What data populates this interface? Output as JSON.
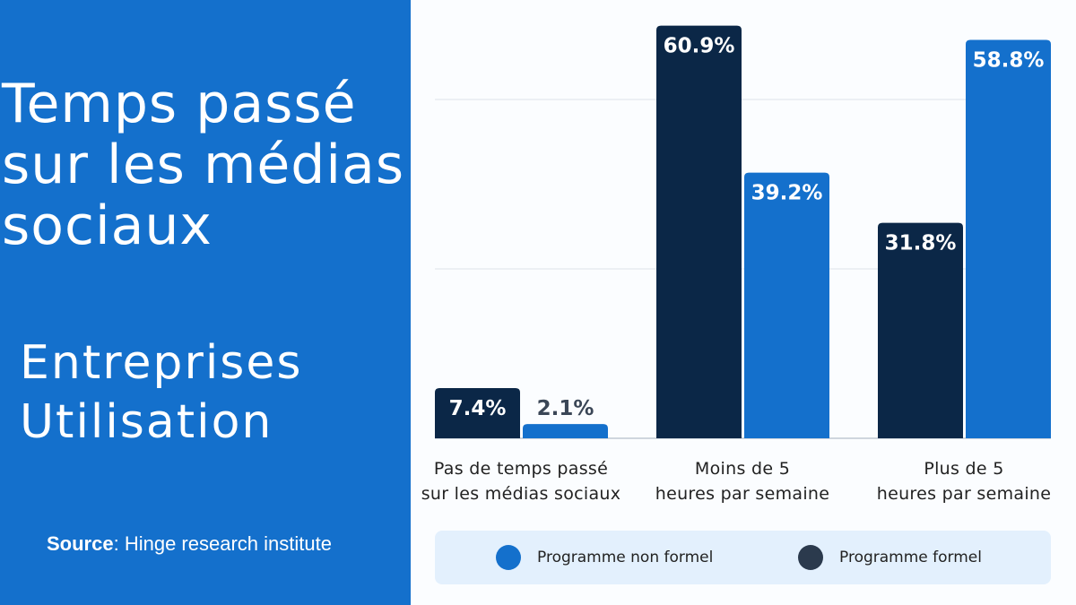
{
  "panel": {
    "title": "Temps passé sur les médias sociaux",
    "subtitle_line1": "Entreprises",
    "subtitle_line2": "Utilisation",
    "source_label": "Source",
    "source_text": ": Hinge research institute"
  },
  "colors": {
    "panel": "#1470cc",
    "formel": "#0b2747",
    "non_formel": "#1470cc"
  },
  "chart_data": {
    "type": "bar",
    "categories": [
      "Pas de temps passé sur les médias sociaux",
      "Moins de 5 heures par semaine",
      "Plus de 5 heures par semaine"
    ],
    "category_lines": [
      [
        "Pas de temps passé",
        "sur les médias sociaux"
      ],
      [
        "Moins de 5",
        "heures par semaine"
      ],
      [
        "Plus de 5",
        "heures par semaine"
      ]
    ],
    "series": [
      {
        "name": "Programme formel",
        "values": [
          7.4,
          60.9,
          31.8
        ],
        "labels": [
          "7.4%",
          "60.9%",
          "31.8%"
        ],
        "color": "#0b2747"
      },
      {
        "name": "Programme non formel",
        "values": [
          2.1,
          39.2,
          58.8
        ],
        "labels": [
          "2.1%",
          "39.2%",
          "58.8%"
        ],
        "color": "#1470cc"
      }
    ],
    "ylim": [
      0,
      62
    ],
    "gridlines": [
      25,
      50
    ],
    "grid": true,
    "legend_placement": "bottom",
    "legend": [
      "Programme non formel",
      "Programme formel"
    ]
  }
}
